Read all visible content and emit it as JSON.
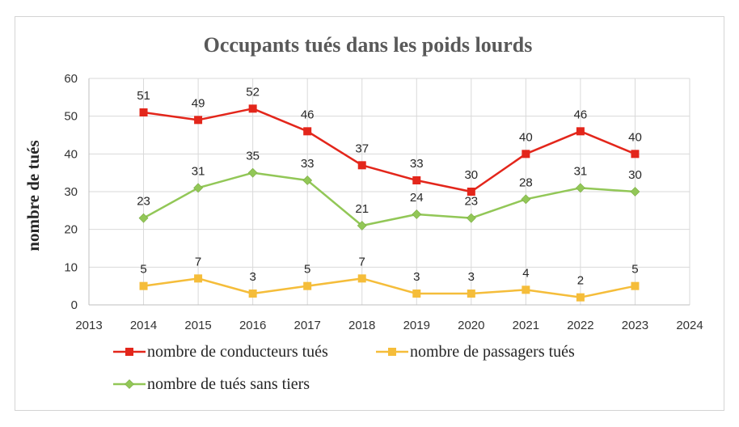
{
  "chart_data": {
    "type": "line",
    "title": "Occupants tués dans les poids lourds",
    "xlabel": "",
    "ylabel": "nombre de tués",
    "xlim": [
      2013,
      2024
    ],
    "ylim": [
      0,
      60
    ],
    "x_ticks": [
      2013,
      2014,
      2015,
      2016,
      2017,
      2018,
      2019,
      2020,
      2021,
      2022,
      2023,
      2024
    ],
    "y_ticks": [
      0,
      10,
      20,
      30,
      40,
      50,
      60
    ],
    "x": [
      2014,
      2015,
      2016,
      2017,
      2018,
      2019,
      2020,
      2021,
      2022,
      2023
    ],
    "grid": true,
    "legend_position": "bottom",
    "series": [
      {
        "name": "nombre de conducteurs tués",
        "color": "#e3261b",
        "marker": "square",
        "values": [
          51,
          49,
          52,
          46,
          37,
          33,
          30,
          40,
          46,
          40
        ]
      },
      {
        "name": "nombre de passagers tués",
        "color": "#f5bd3a",
        "marker": "square",
        "values": [
          5,
          7,
          3,
          5,
          7,
          3,
          3,
          4,
          2,
          5
        ]
      },
      {
        "name": "nombre de tués sans tiers",
        "color": "#92c757",
        "marker": "diamond",
        "values": [
          23,
          31,
          35,
          33,
          21,
          24,
          23,
          28,
          31,
          30
        ]
      }
    ]
  }
}
